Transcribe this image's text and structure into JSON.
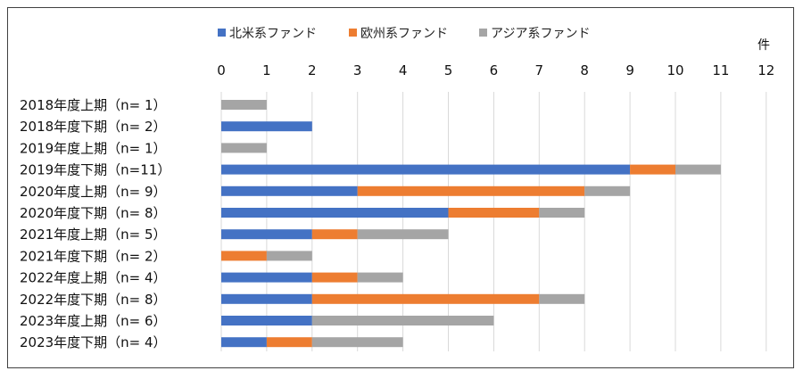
{
  "chart_data": {
    "type": "bar",
    "orientation": "horizontal",
    "stacked": true,
    "title": "",
    "unit_label": "件",
    "xlim": [
      0,
      12
    ],
    "x_ticks": [
      0,
      1,
      2,
      3,
      4,
      5,
      6,
      7,
      8,
      9,
      10,
      11,
      12
    ],
    "grid": true,
    "legend_position": "top",
    "categories": [
      "2018年度上期（n=  1）",
      "2018年度下期（n=  2）",
      "2019年度上期（n=  1）",
      "2019年度下期（n=11）",
      "2020年度上期（n=  9）",
      "2020年度下期（n=  8）",
      "2021年度上期（n=  5）",
      "2021年度下期（n=  2）",
      "2022年度上期（n=  4）",
      "2022年度下期（n=  8）",
      "2023年度上期（n=  6）",
      "2023年度下期（n=  4）"
    ],
    "series": [
      {
        "name": "北米系ファンド",
        "color": "#4472C4",
        "values": [
          0,
          2,
          0,
          9,
          3,
          5,
          2,
          0,
          2,
          2,
          2,
          1
        ]
      },
      {
        "name": "欧州系ファンド",
        "color": "#ED7D31",
        "values": [
          0,
          0,
          0,
          1,
          5,
          2,
          1,
          1,
          1,
          5,
          0,
          1
        ]
      },
      {
        "name": "アジア系ファンド",
        "color": "#A5A5A5",
        "values": [
          1,
          0,
          1,
          1,
          1,
          1,
          2,
          1,
          1,
          1,
          4,
          2
        ]
      }
    ]
  }
}
